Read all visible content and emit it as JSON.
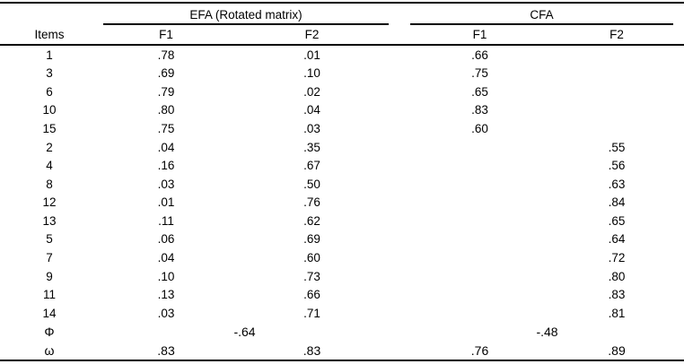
{
  "header": {
    "items_label": "Items",
    "efa_group_label": "EFA (Rotated matrix)",
    "cfa_group_label": "CFA",
    "efa_f1_label": "F1",
    "efa_f2_label": "F2",
    "cfa_f1_label": "F1",
    "cfa_f2_label": "F2"
  },
  "rows": [
    {
      "item": "1",
      "efa_f1": ".78",
      "efa_f2": ".01",
      "cfa_f1": ".66",
      "cfa_f2": ""
    },
    {
      "item": "3",
      "efa_f1": ".69",
      "efa_f2": ".10",
      "cfa_f1": ".75",
      "cfa_f2": ""
    },
    {
      "item": "6",
      "efa_f1": ".79",
      "efa_f2": ".02",
      "cfa_f1": ".65",
      "cfa_f2": ""
    },
    {
      "item": "10",
      "efa_f1": ".80",
      "efa_f2": ".04",
      "cfa_f1": ".83",
      "cfa_f2": ""
    },
    {
      "item": "15",
      "efa_f1": ".75",
      "efa_f2": ".03",
      "cfa_f1": ".60",
      "cfa_f2": ""
    },
    {
      "item": "2",
      "efa_f1": ".04",
      "efa_f2": ".35",
      "cfa_f1": "",
      "cfa_f2": ".55"
    },
    {
      "item": "4",
      "efa_f1": ".16",
      "efa_f2": ".67",
      "cfa_f1": "",
      "cfa_f2": ".56"
    },
    {
      "item": "8",
      "efa_f1": ".03",
      "efa_f2": ".50",
      "cfa_f1": "",
      "cfa_f2": ".63"
    },
    {
      "item": "12",
      "efa_f1": ".01",
      "efa_f2": ".76",
      "cfa_f1": "",
      "cfa_f2": ".84"
    },
    {
      "item": "13",
      "efa_f1": ".11",
      "efa_f2": ".62",
      "cfa_f1": "",
      "cfa_f2": ".65"
    },
    {
      "item": "5",
      "efa_f1": ".06",
      "efa_f2": ".69",
      "cfa_f1": "",
      "cfa_f2": ".64"
    },
    {
      "item": "7",
      "efa_f1": ".04",
      "efa_f2": ".60",
      "cfa_f1": "",
      "cfa_f2": ".72"
    },
    {
      "item": "9",
      "efa_f1": ".10",
      "efa_f2": ".73",
      "cfa_f1": "",
      "cfa_f2": ".80"
    },
    {
      "item": "11",
      "efa_f1": ".13",
      "efa_f2": ".66",
      "cfa_f1": "",
      "cfa_f2": ".83"
    },
    {
      "item": "14",
      "efa_f1": ".03",
      "efa_f2": ".71",
      "cfa_f1": "",
      "cfa_f2": ".81"
    }
  ],
  "phi_row": {
    "label": "Φ",
    "efa": "-.64",
    "cfa": "-.48"
  },
  "omega_row": {
    "label": "ω",
    "efa_f1": ".83",
    "efa_f2": ".83",
    "cfa_f1": ".76",
    "cfa_f2": ".89"
  },
  "colors": {
    "text": "#000000",
    "rule": "#000000",
    "background": "#ffffff"
  }
}
